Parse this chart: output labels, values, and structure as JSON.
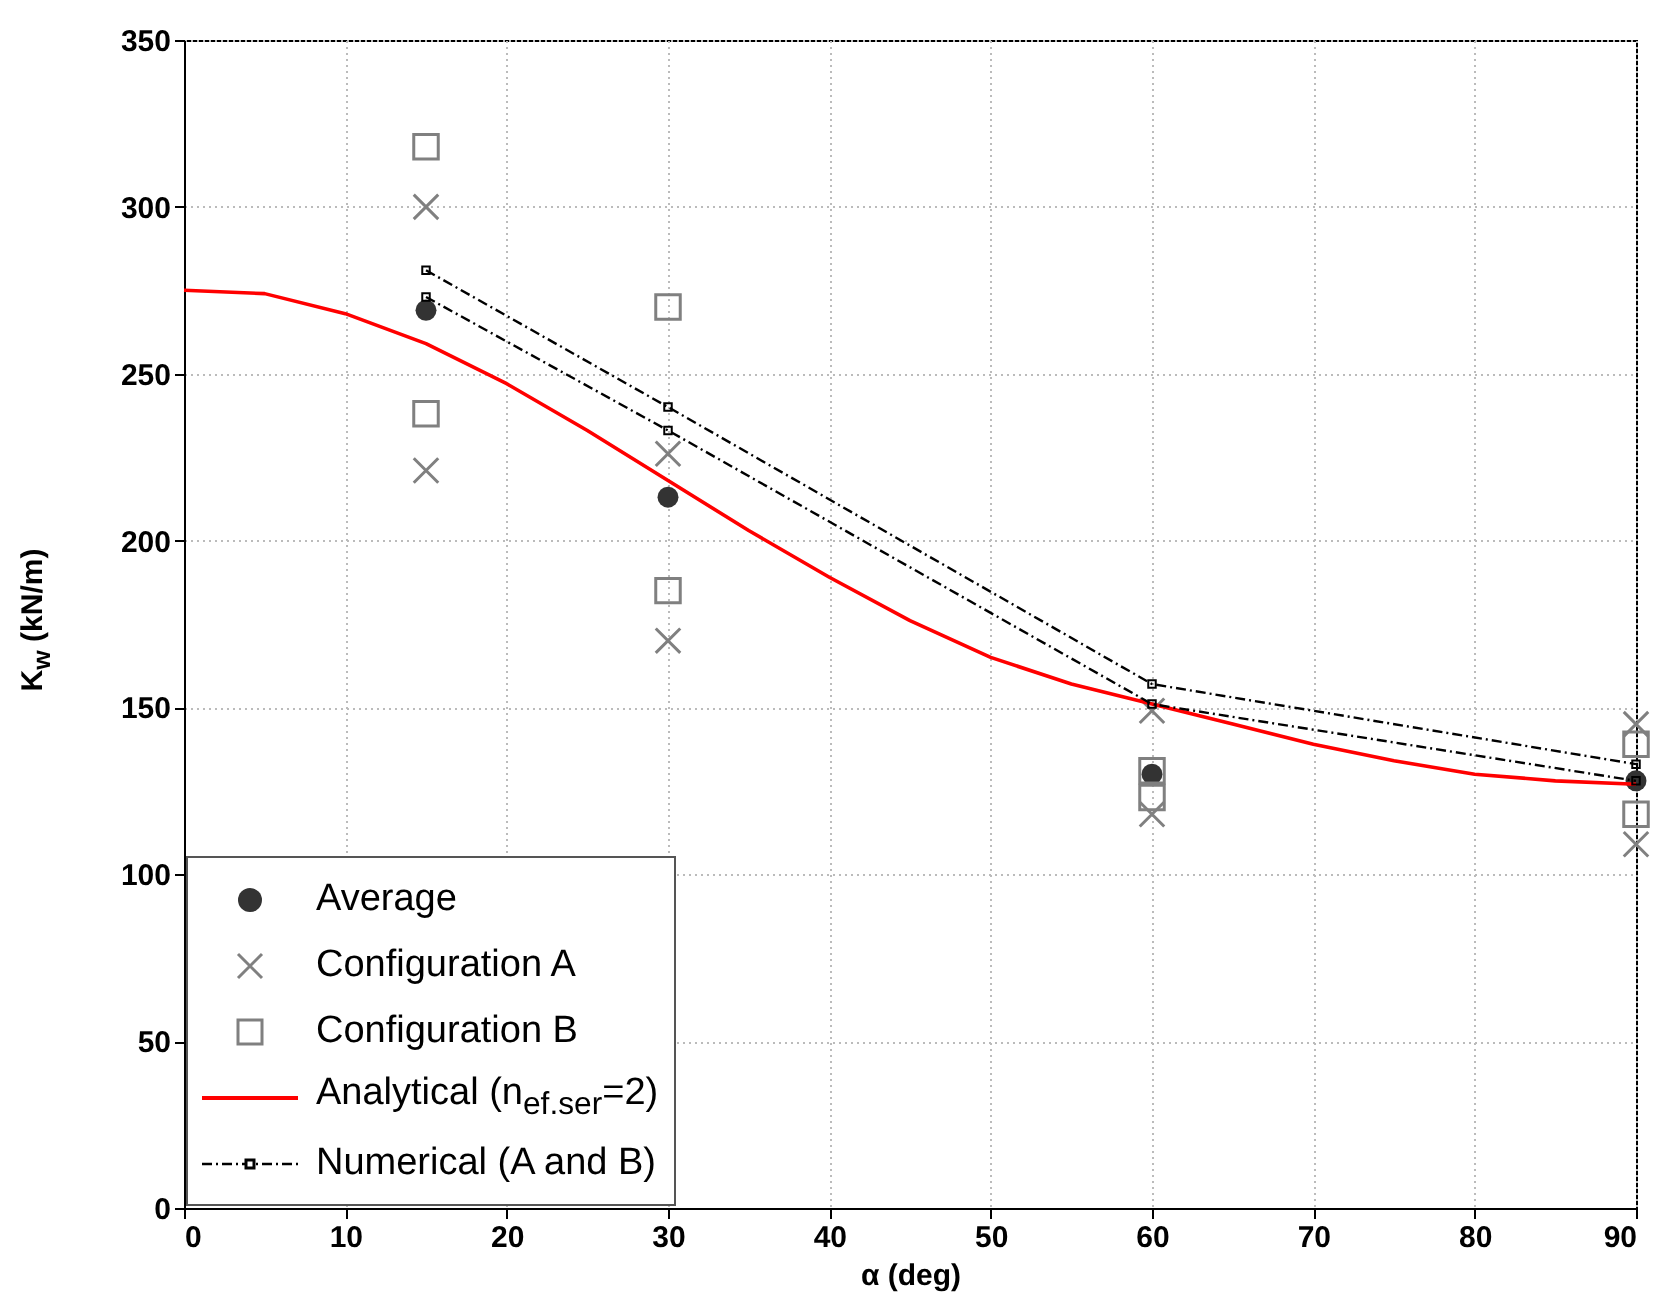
{
  "chart_data": {
    "type": "scatter",
    "xlabel": "α (deg)",
    "ylabel": "K$_{w}$ (kN/m)",
    "xlim": [
      0,
      90
    ],
    "xticks": [
      0,
      10,
      20,
      30,
      40,
      50,
      60,
      70,
      80,
      90
    ],
    "ylim": [
      0,
      350
    ],
    "yticks": [
      0,
      50,
      100,
      150,
      200,
      250,
      300,
      350
    ],
    "grid": true,
    "legend": "bottom left",
    "series": [
      {
        "name": "Average",
        "marker": "circle",
        "color": "#333333",
        "x": [
          15,
          30,
          60,
          90
        ],
        "values": [
          269,
          213,
          130,
          128
        ]
      },
      {
        "name": "Configuration A",
        "marker": "cross",
        "color": "#808080",
        "x": [
          15,
          15,
          30,
          30,
          60,
          60,
          90,
          90
        ],
        "values": [
          300,
          221,
          226,
          170,
          149,
          118,
          145,
          109
        ]
      },
      {
        "name": "Configuration B",
        "marker": "square",
        "color": "#808080",
        "x": [
          15,
          15,
          30,
          30,
          60,
          60,
          90,
          90
        ],
        "values": [
          318,
          238,
          270,
          185,
          131,
          123,
          139,
          118
        ]
      },
      {
        "name": "Analytical (n$_{ef.ser}$=2)",
        "type": "line",
        "marker": "none",
        "line_style": "solid",
        "color": "#ff0000",
        "x": [
          0,
          5,
          10,
          15,
          20,
          25,
          30,
          35,
          40,
          45,
          50,
          55,
          60,
          65,
          70,
          75,
          80,
          85,
          90
        ],
        "values": [
          275,
          274,
          268,
          259,
          247,
          233,
          218,
          203,
          189,
          176,
          165,
          157,
          151,
          145,
          139,
          134,
          130,
          128,
          127
        ]
      },
      {
        "name": "Numerical (A and B)",
        "type": "line",
        "marker": "square",
        "line_style": "dashed",
        "color": "#000000",
        "x": [
          15,
          30,
          60,
          90
        ],
        "values": [
          281,
          240,
          157,
          133
        ]
      },
      {
        "type": "line",
        "marker": "square",
        "line_style": "dashed",
        "color": "#000000",
        "x": [
          15,
          30,
          60,
          90
        ],
        "values": [
          273,
          233,
          151,
          128
        ]
      }
    ]
  }
}
